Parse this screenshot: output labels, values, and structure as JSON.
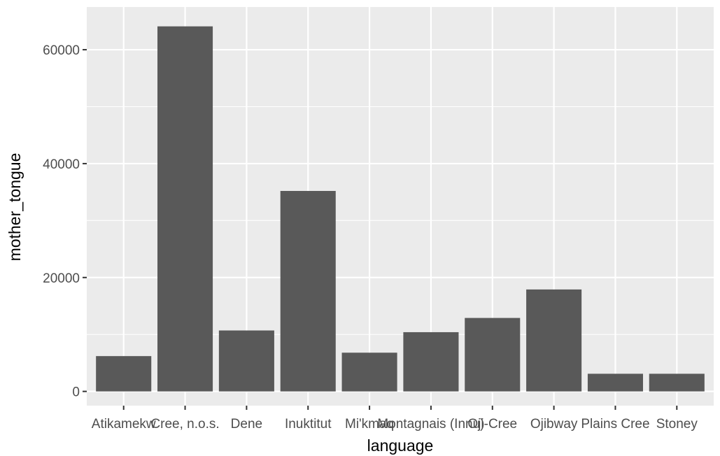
{
  "chart_data": {
    "type": "bar",
    "categories": [
      "Atikamekw",
      "Cree, n.o.s.",
      "Dene",
      "Inuktitut",
      "Mi'kmaq",
      "Montagnais (Innu)",
      "Oji-Cree",
      "Ojibway",
      "Plains Cree",
      "Stoney"
    ],
    "values": [
      6200,
      64100,
      10700,
      35200,
      6800,
      10400,
      12900,
      17900,
      3100,
      3100
    ],
    "xlabel": "language",
    "ylabel": "mother_tongue",
    "ylim": [
      -2500,
      67500
    ],
    "yticks": [
      0,
      20000,
      40000,
      60000
    ],
    "grid": true,
    "colors": {
      "panel": "#ebebeb",
      "grid_major": "#ffffff",
      "bar": "#595959",
      "tick": "#333333",
      "tick_text": "#4d4d4d"
    }
  }
}
